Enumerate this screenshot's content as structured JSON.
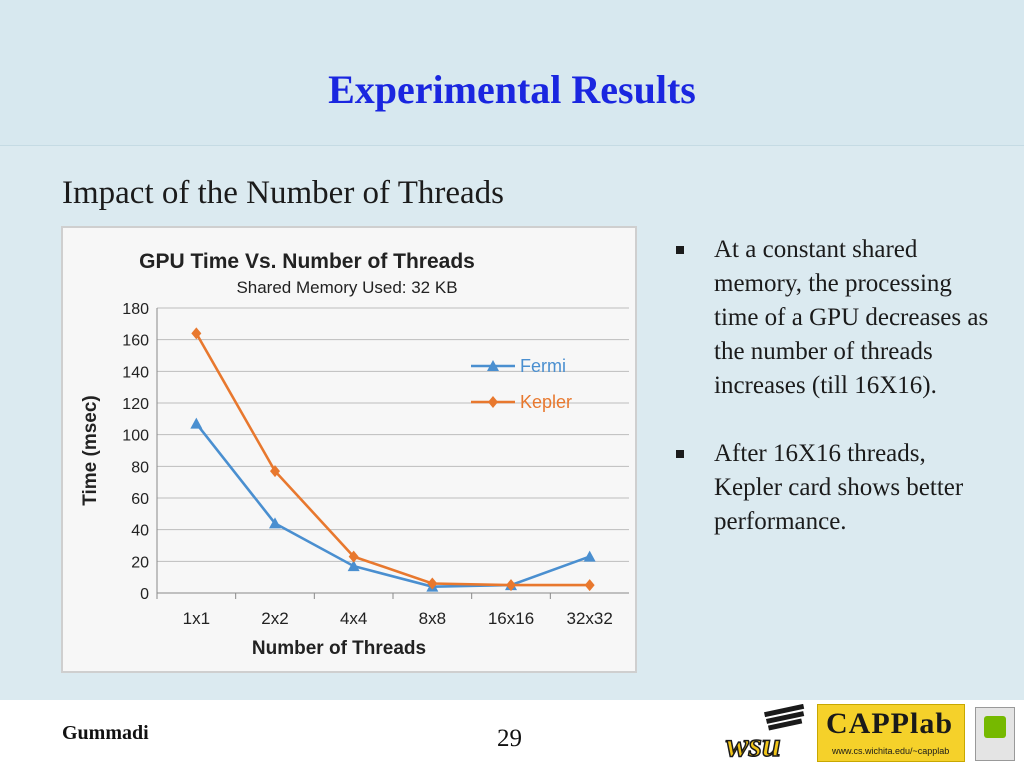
{
  "slide": {
    "title": "Experimental Results",
    "subtitle": "Impact of the Number of Threads",
    "bullets": [
      "At a constant shared memory, the processing time of a GPU decreases as the number of threads increases (till 16X16).",
      "After 16X16 threads, Kepler card shows better performance."
    ]
  },
  "footer": {
    "author": "Gummadi",
    "page_number": "29",
    "logos": {
      "wsu_text": "wsu",
      "capp_text": "CAPPlab",
      "capp_url": "www.cs.wichita.edu/~capplab"
    }
  },
  "colors": {
    "title": "#1a26e0",
    "fermi": "#4a8fd0",
    "kepler": "#e8782e",
    "background": "#dbeaf0"
  },
  "chart_data": {
    "type": "line",
    "title": "GPU Time Vs. Number of Threads",
    "subtitle": "Shared Memory Used: 32 KB",
    "xlabel": "Number of Threads",
    "ylabel": "Time (msec)",
    "categories": [
      "1x1",
      "2x2",
      "4x4",
      "8x8",
      "16x16",
      "32x32"
    ],
    "ylim": [
      0,
      180
    ],
    "yticks": [
      0,
      20,
      40,
      60,
      80,
      100,
      120,
      140,
      160,
      180
    ],
    "grid": true,
    "legend_position": "right",
    "series": [
      {
        "name": "Fermi",
        "values": [
          107,
          44,
          17,
          4,
          5,
          23
        ],
        "color": "#4a8fd0",
        "marker": "triangle"
      },
      {
        "name": "Kepler",
        "values": [
          164,
          77,
          23,
          6,
          5,
          5
        ],
        "color": "#e8782e",
        "marker": "diamond"
      }
    ]
  }
}
